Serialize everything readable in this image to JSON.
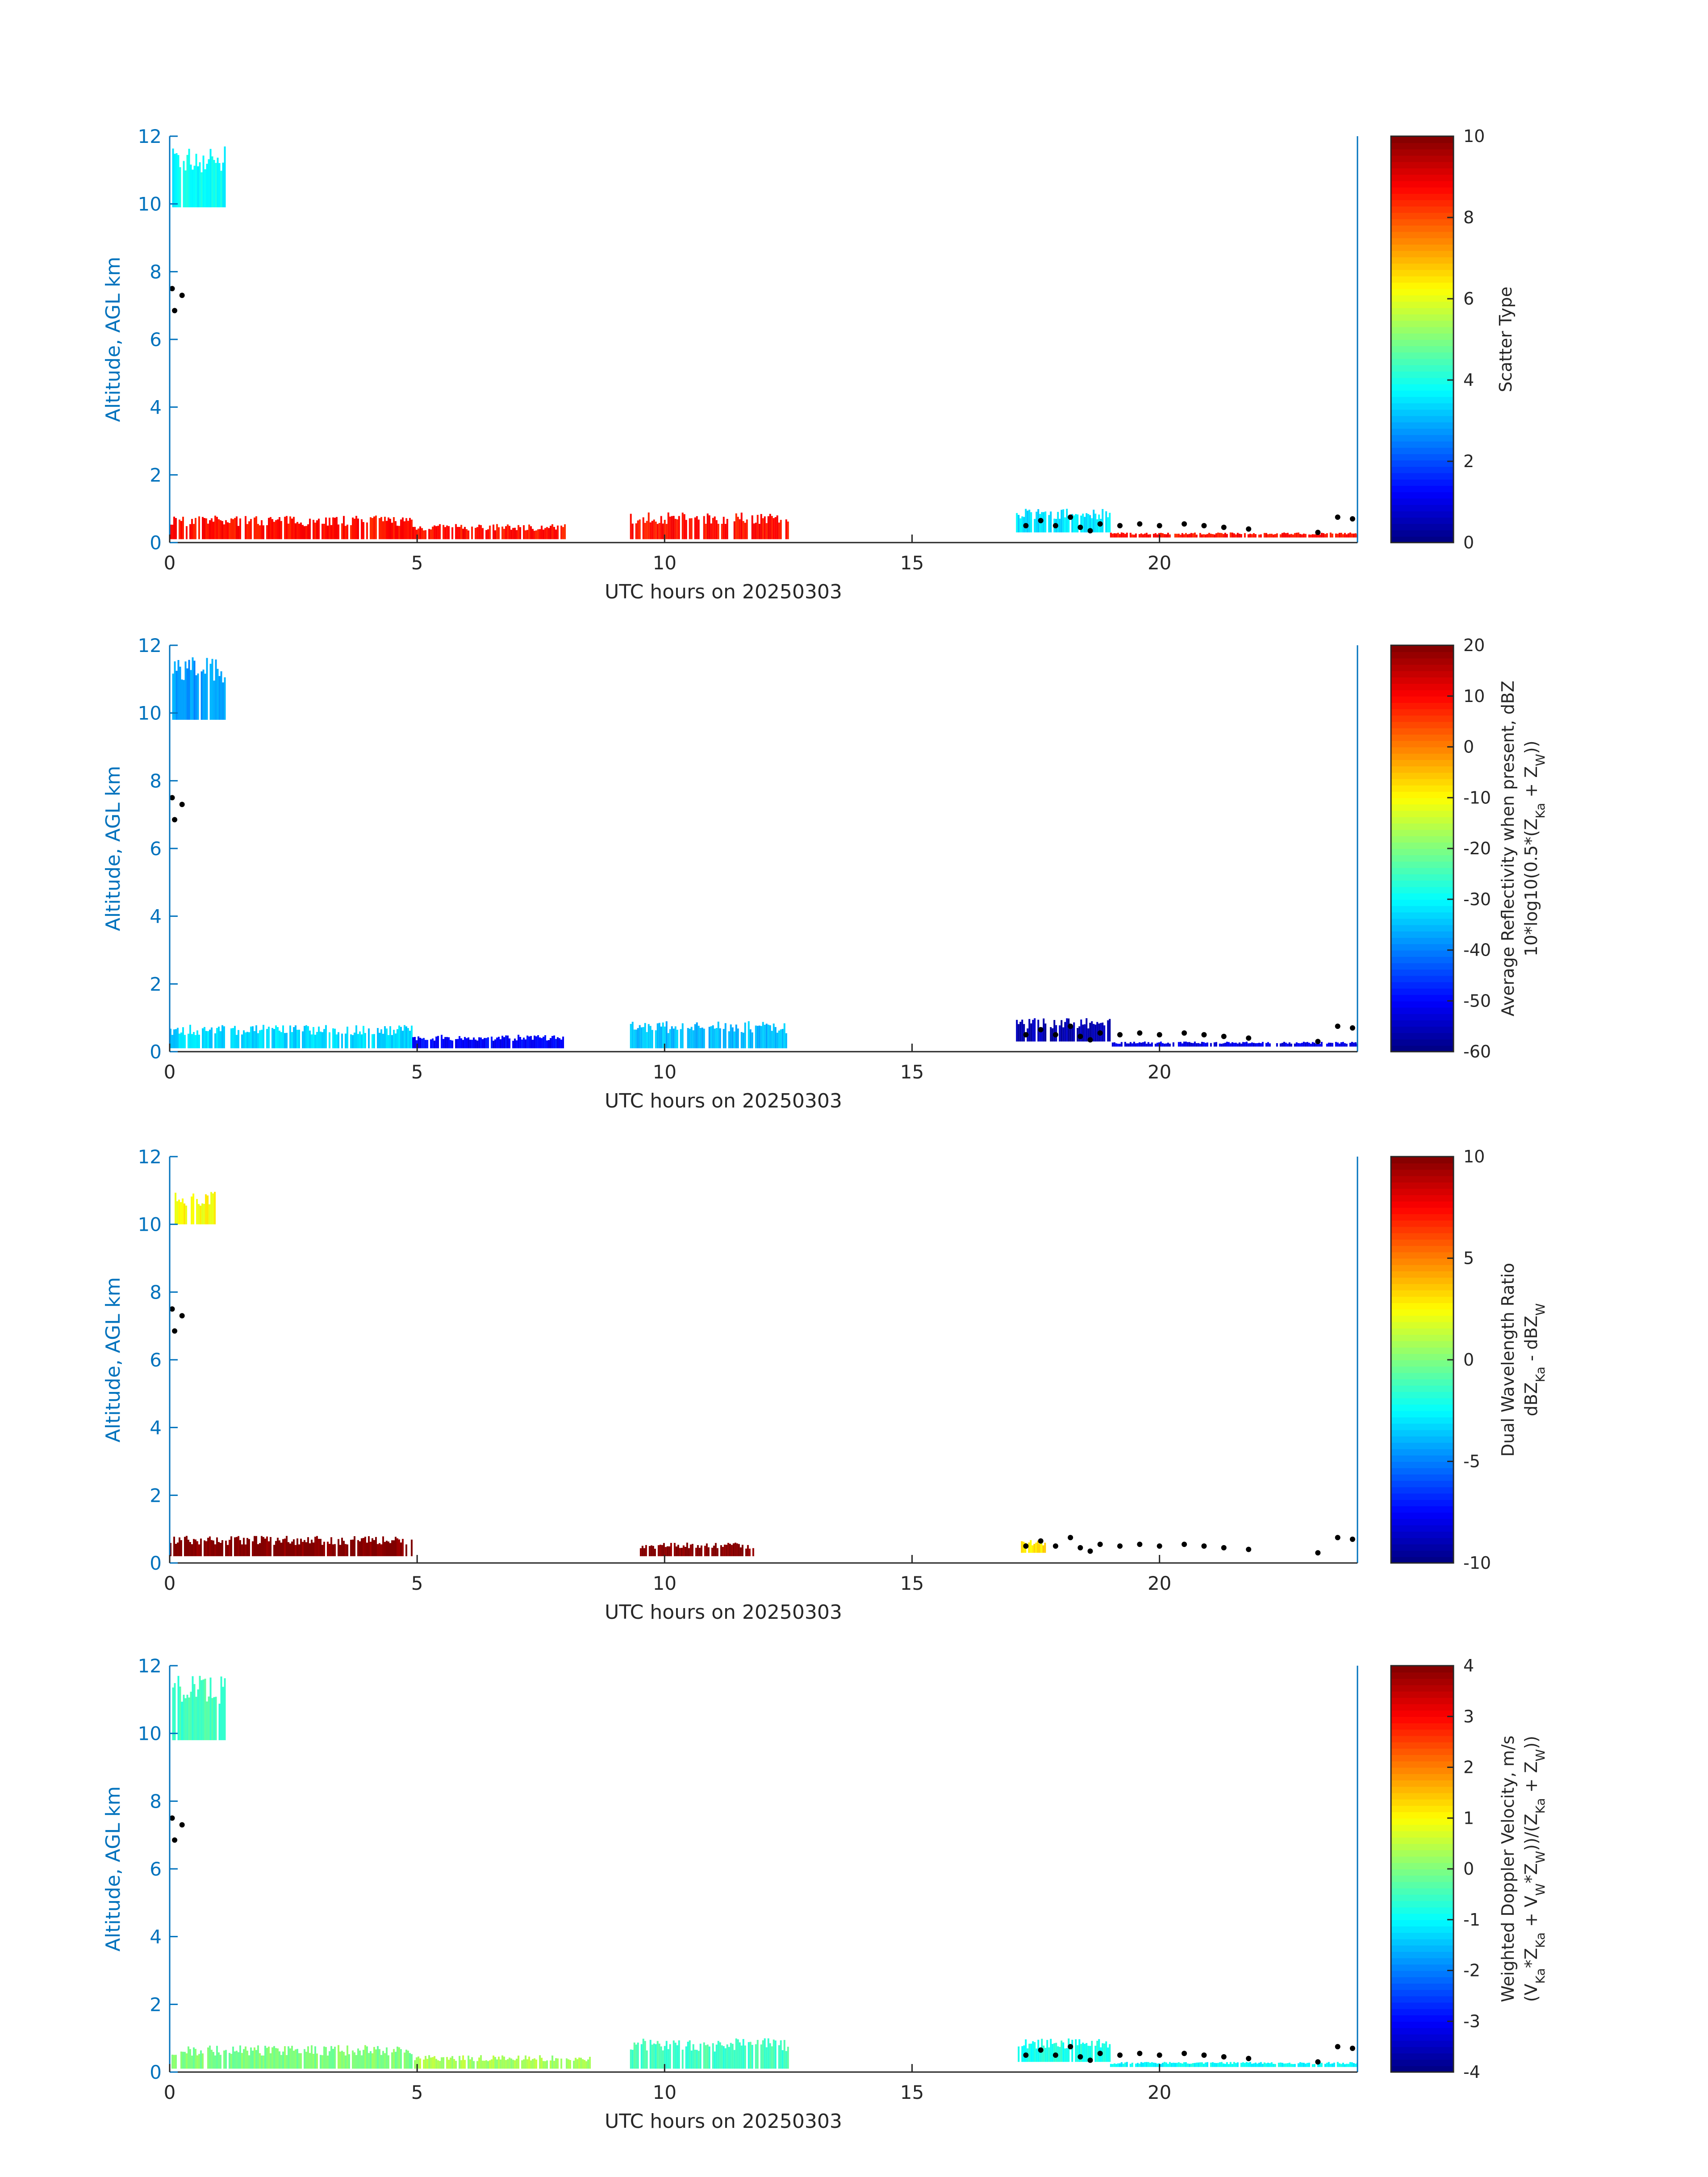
{
  "chart_data": [
    {
      "type": "heatmap",
      "xlabel": "UTC hours on 20250303",
      "ylabel": "Altitude, AGL km",
      "xlim": [
        0,
        24
      ],
      "ylim": [
        0,
        12
      ],
      "xticks": [
        "0",
        "5",
        "10",
        "15",
        "20"
      ],
      "yticks": [
        "0",
        "2",
        "4",
        "6",
        "8",
        "10",
        "12"
      ],
      "colorbar": {
        "label_lines": [
          "Scatter Type"
        ],
        "clim": [
          0,
          10
        ],
        "ticks": [
          "0",
          "2",
          "4",
          "6",
          "8",
          "10"
        ],
        "colormap": "jet"
      },
      "layers": [
        {
          "t0": 0.05,
          "t1": 1.1,
          "z0": 9.9,
          "z1": 11.7,
          "value": 3.8
        },
        {
          "t0": 0.0,
          "t1": 4.9,
          "z0": 0.1,
          "z1": 0.8,
          "value": 8.6
        },
        {
          "t0": 4.9,
          "t1": 8.0,
          "z0": 0.1,
          "z1": 0.55,
          "value": 8.6
        },
        {
          "t0": 9.3,
          "t1": 12.5,
          "z0": 0.1,
          "z1": 0.9,
          "value": 8.6
        },
        {
          "t0": 17.1,
          "t1": 19.0,
          "z0": 0.3,
          "z1": 1.0,
          "value": 3.5
        },
        {
          "t0": 19.0,
          "t1": 24.0,
          "z0": 0.15,
          "z1": 0.3,
          "value": 8.6
        }
      ]
    },
    {
      "type": "heatmap",
      "xlabel": "UTC hours on 20250303",
      "ylabel": "Altitude, AGL km",
      "xlim": [
        0,
        24
      ],
      "ylim": [
        0,
        12
      ],
      "xticks": [
        "0",
        "5",
        "10",
        "15",
        "20"
      ],
      "yticks": [
        "0",
        "2",
        "4",
        "6",
        "8",
        "10",
        "12"
      ],
      "colorbar": {
        "label_lines": [
          "Average Reflectivity when present, dBZ",
          "10*log10(0.5*(Z",
          "Ka",
          " + Z",
          "W",
          "))"
        ],
        "clim": [
          -60,
          20
        ],
        "ticks": [
          "-60",
          "-50",
          "-40",
          "-30",
          "-20",
          "-10",
          "0",
          "10",
          "20"
        ],
        "colormap": "jet"
      },
      "layers": [
        {
          "t0": 0.05,
          "t1": 1.1,
          "z0": 9.8,
          "z1": 11.7,
          "value": -38
        },
        {
          "t0": 0.0,
          "t1": 4.9,
          "z0": 0.1,
          "z1": 0.8,
          "value": -33
        },
        {
          "t0": 4.9,
          "t1": 8.0,
          "z0": 0.1,
          "z1": 0.5,
          "value": -50
        },
        {
          "t0": 9.3,
          "t1": 12.5,
          "z0": 0.1,
          "z1": 0.9,
          "value": -35
        },
        {
          "t0": 17.1,
          "t1": 19.0,
          "z0": 0.3,
          "z1": 1.0,
          "value": -56
        },
        {
          "t0": 19.0,
          "t1": 24.0,
          "z0": 0.15,
          "z1": 0.3,
          "value": -52
        }
      ]
    },
    {
      "type": "heatmap",
      "xlabel": "UTC hours on 20250303",
      "ylabel": "Altitude, AGL km",
      "xlim": [
        0,
        24
      ],
      "ylim": [
        0,
        12
      ],
      "xticks": [
        "0",
        "5",
        "10",
        "15",
        "20"
      ],
      "yticks": [
        "0",
        "2",
        "4",
        "6",
        "8",
        "10",
        "12"
      ],
      "colorbar": {
        "label_lines": [
          "Dual Wavelength Ratio",
          "dBZ",
          "Ka",
          " - dBZ",
          "W"
        ],
        "clim": [
          -10,
          10
        ],
        "ticks": [
          "-10",
          "-5",
          "0",
          "5",
          "10"
        ],
        "colormap": "jet"
      },
      "layers": [
        {
          "t0": 0.1,
          "t1": 0.9,
          "z0": 10.0,
          "z1": 11.0,
          "value": 2.5
        },
        {
          "t0": 0.0,
          "t1": 4.9,
          "z0": 0.2,
          "z1": 0.8,
          "value": 10
        },
        {
          "t0": 9.5,
          "t1": 11.8,
          "z0": 0.2,
          "z1": 0.6,
          "value": 10
        },
        {
          "t0": 17.2,
          "t1": 17.7,
          "z0": 0.3,
          "z1": 0.7,
          "value": 3
        }
      ]
    },
    {
      "type": "heatmap",
      "xlabel": "UTC hours on 20250303",
      "ylabel": "Altitude, AGL km",
      "xlim": [
        0,
        24
      ],
      "ylim": [
        0,
        12
      ],
      "xticks": [
        "0",
        "5",
        "10",
        "15",
        "20"
      ],
      "yticks": [
        "0",
        "2",
        "4",
        "6",
        "8",
        "10",
        "12"
      ],
      "colorbar": {
        "label_lines": [
          "Weighted Doppler Velocity, m/s",
          "(V",
          "Ka",
          "*Z",
          "Ka",
          " + V",
          "W",
          "*Z",
          "W",
          "))/(Z",
          "Ka",
          " + Z",
          "W",
          "))"
        ],
        "clim": [
          -4,
          4
        ],
        "ticks": [
          "-4",
          "-3",
          "-2",
          "-1",
          "0",
          "1",
          "2",
          "3",
          "4"
        ],
        "colormap": "jet"
      },
      "layers": [
        {
          "t0": 0.05,
          "t1": 1.1,
          "z0": 9.8,
          "z1": 11.7,
          "value": -0.5
        },
        {
          "t0": 0.0,
          "t1": 4.9,
          "z0": 0.1,
          "z1": 0.8,
          "value": 0.0
        },
        {
          "t0": 4.9,
          "t1": 8.5,
          "z0": 0.1,
          "z1": 0.5,
          "value": 0.3
        },
        {
          "t0": 9.3,
          "t1": 12.5,
          "z0": 0.1,
          "z1": 1.0,
          "value": -0.5
        },
        {
          "t0": 17.1,
          "t1": 19.0,
          "z0": 0.3,
          "z1": 1.0,
          "value": -0.8
        },
        {
          "t0": 19.0,
          "t1": 24.0,
          "z0": 0.15,
          "z1": 0.3,
          "value": -1.0
        }
      ]
    }
  ],
  "black_markers": [
    [
      0.05,
      7.5
    ],
    [
      0.25,
      7.3
    ],
    [
      0.1,
      6.85
    ],
    [
      17.3,
      0.5
    ],
    [
      17.6,
      0.65
    ],
    [
      17.9,
      0.5
    ],
    [
      18.2,
      0.75
    ],
    [
      18.4,
      0.45
    ],
    [
      18.6,
      0.35
    ],
    [
      18.8,
      0.55
    ],
    [
      19.2,
      0.5
    ],
    [
      19.6,
      0.55
    ],
    [
      20.0,
      0.5
    ],
    [
      20.5,
      0.55
    ],
    [
      20.9,
      0.5
    ],
    [
      21.3,
      0.45
    ],
    [
      21.8,
      0.4
    ],
    [
      23.2,
      0.3
    ],
    [
      23.6,
      0.75
    ],
    [
      23.9,
      0.7
    ]
  ]
}
